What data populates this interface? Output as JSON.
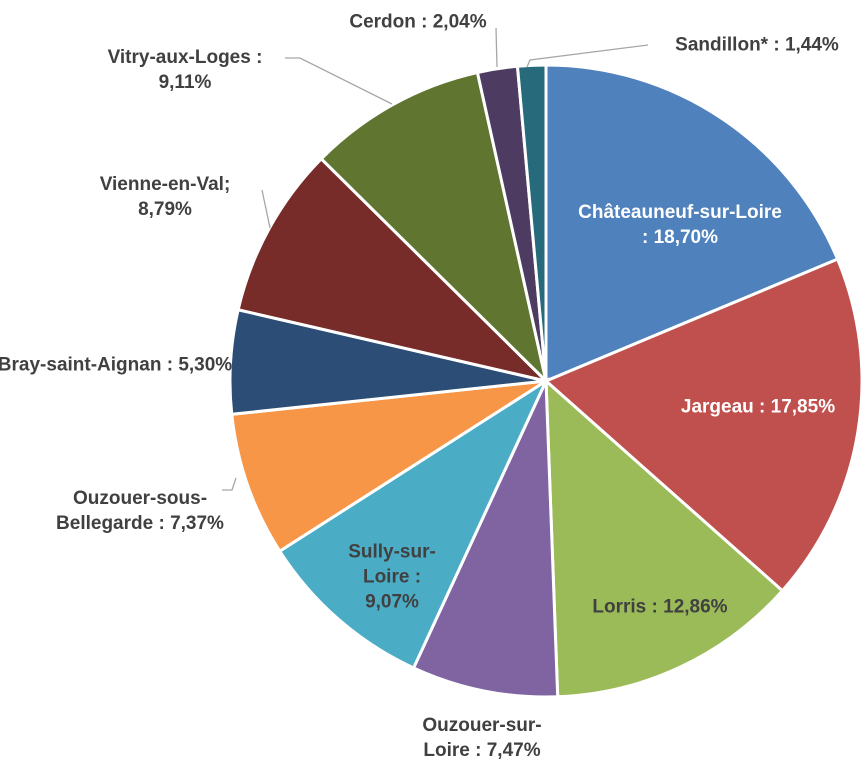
{
  "chart_data": {
    "type": "pie",
    "values": [
      18.7,
      17.85,
      12.86,
      7.47,
      9.07,
      7.37,
      5.3,
      8.79,
      9.11,
      2.04,
      1.44
    ],
    "value_labels": [
      "Châteauneuf-sur-Loire : 18,70%",
      "Jargeau : 17,85%",
      "Lorris : 12,86%",
      "Ouzouer-sur-Loire : 7,47%",
      "Sully-sur-Loire : 9,07%",
      "Ouzouer-sous-Bellegarde : 7,37%",
      "Bray-saint-Aignan : 5,30%",
      "Vienne-en-Val; 8,79%",
      "Vitry-aux-Loges : 9,11%",
      "Cerdon : 2,04%",
      "Sandillon* : 1,44%"
    ],
    "colors": [
      "#4f81bd",
      "#c0504d",
      "#9bbb59",
      "#8064a2",
      "#4bacc6",
      "#f79646",
      "#2c4d75",
      "#772c2a",
      "#5f7530",
      "#4d3b62",
      "#276a7c"
    ]
  }
}
